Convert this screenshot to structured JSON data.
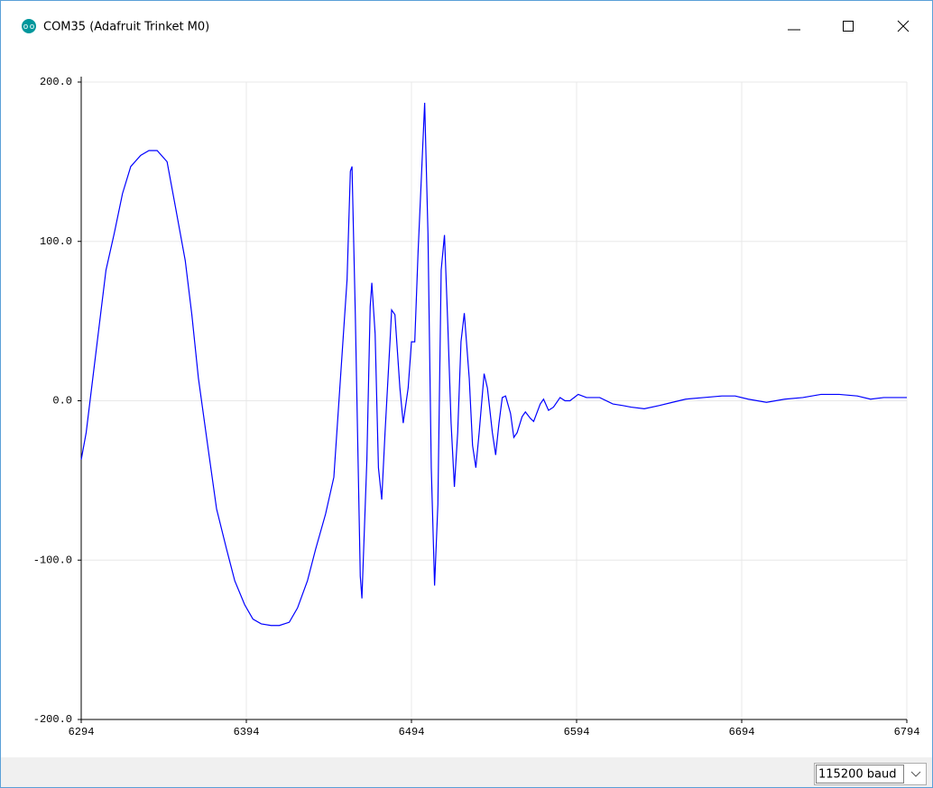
{
  "window": {
    "title": "COM35 (Adafruit Trinket M0)"
  },
  "chart_data": {
    "type": "line",
    "color": "#0000ff",
    "grid": true,
    "xlim": [
      6294,
      6794
    ],
    "ylim": [
      -200,
      200
    ],
    "xticks": [
      6294,
      6394,
      6494,
      6594,
      6694,
      6794
    ],
    "yticks": [
      {
        "value": -200,
        "label": "-200.0"
      },
      {
        "value": -100,
        "label": "-100.0"
      },
      {
        "value": 0,
        "label": "0.0"
      },
      {
        "value": 100,
        "label": "100.0"
      },
      {
        "value": 200,
        "label": "200.0"
      }
    ],
    "x": [
      6294,
      6297,
      6301,
      6305,
      6309,
      6314,
      6319,
      6324,
      6330,
      6335,
      6340,
      6346,
      6351,
      6357,
      6361,
      6365,
      6371,
      6376,
      6382,
      6387,
      6393,
      6398,
      6403,
      6409,
      6414,
      6420,
      6425,
      6431,
      6436,
      6442,
      6447,
      6451,
      6455,
      6457,
      6458,
      6460,
      6463,
      6464,
      6467,
      6469,
      6470,
      6472,
      6474,
      6476,
      6478,
      6481,
      6482,
      6484,
      6487,
      6489,
      6492,
      6494,
      6496,
      6498,
      6502,
      6504,
      6506,
      6508,
      6510,
      6512,
      6514,
      6516,
      6518,
      6520,
      6522,
      6524,
      6526,
      6529,
      6531,
      6533,
      6535,
      6538,
      6540,
      6543,
      6545,
      6547,
      6549,
      6551,
      6554,
      6556,
      6558,
      6561,
      6563,
      6566,
      6568,
      6572,
      6574,
      6577,
      6580,
      6584,
      6587,
      6590,
      6595,
      6600,
      6608,
      6616,
      6622,
      6627,
      6635,
      6644,
      6652,
      6660,
      6671,
      6682,
      6690,
      6698,
      6709,
      6720,
      6731,
      6742,
      6753,
      6764,
      6772,
      6780,
      6794
    ],
    "values": [
      -37,
      -20,
      14,
      48,
      82,
      105,
      130,
      147,
      154,
      157,
      157,
      150,
      122,
      88,
      54,
      14,
      -31,
      -68,
      -93,
      -113,
      -128,
      -137,
      -140,
      -141,
      -141,
      -139,
      -130,
      -113,
      -93,
      -71,
      -48,
      14,
      76,
      144,
      147,
      54,
      -110,
      -124,
      -37,
      59,
      74,
      42,
      -42,
      -62,
      -20,
      37,
      57,
      54,
      8,
      -14,
      8,
      37,
      37,
      93,
      187,
      105,
      -42,
      -116,
      -65,
      82,
      104,
      48,
      -14,
      -54,
      -20,
      37,
      55,
      14,
      -28,
      -42,
      -20,
      17,
      8,
      -20,
      -34,
      -14,
      2,
      3,
      -8,
      -23,
      -20,
      -10,
      -7,
      -11,
      -13,
      -2,
      1,
      -6,
      -4,
      2,
      0,
      0,
      4,
      2,
      2,
      -2,
      -3,
      -4,
      -5,
      -3,
      -1,
      1,
      2,
      3,
      3,
      1,
      -1,
      1,
      2,
      4,
      4,
      3,
      1,
      2,
      2
    ]
  },
  "footer": {
    "baud": "115200 baud"
  }
}
